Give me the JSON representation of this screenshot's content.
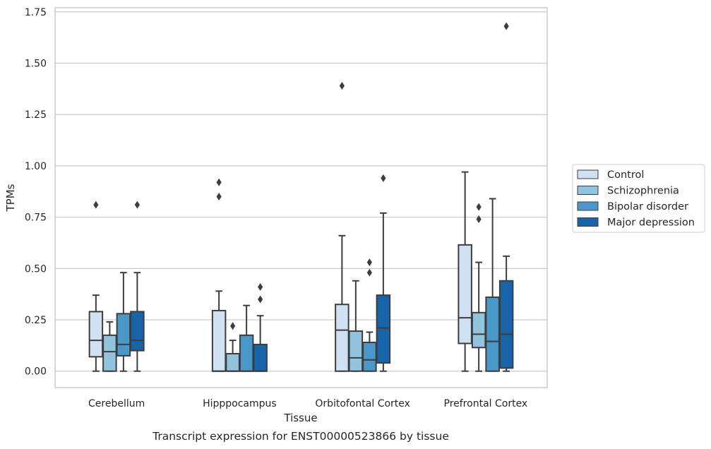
{
  "chart_data": {
    "type": "box",
    "caption": "Transcript expression for ENST00000523866 by tissue",
    "xlabel": "Tissue",
    "ylabel": "TPMs",
    "ylim": [
      -0.08,
      1.77
    ],
    "yticks": [
      "0.00",
      "0.25",
      "0.50",
      "0.75",
      "1.00",
      "1.25",
      "1.50",
      "1.75"
    ],
    "categories": [
      "Cerebellum",
      "Hipppocampus",
      "Orbitofontal Cortex",
      "Prefrontal Cortex"
    ],
    "grid": "horizontal",
    "legend_position": "right",
    "series": [
      {
        "name": "Control",
        "color": "#cfe1f2",
        "boxes": [
          {
            "whisker_low": 0.0,
            "q1": 0.07,
            "median": 0.15,
            "q3": 0.29,
            "whisker_high": 0.37,
            "outliers": [
              0.81
            ]
          },
          {
            "whisker_low": 0.0,
            "q1": 0.0,
            "median": 0.0,
            "q3": 0.295,
            "whisker_high": 0.39,
            "outliers": [
              0.85,
              0.92
            ]
          },
          {
            "whisker_low": 0.0,
            "q1": 0.0,
            "median": 0.2,
            "q3": 0.325,
            "whisker_high": 0.66,
            "outliers": [
              1.39
            ]
          },
          {
            "whisker_low": 0.0,
            "q1": 0.135,
            "median": 0.26,
            "q3": 0.615,
            "whisker_high": 0.97,
            "outliers": []
          }
        ]
      },
      {
        "name": "Schizophrenia",
        "color": "#93c4de",
        "boxes": [
          {
            "whisker_low": 0.0,
            "q1": 0.0,
            "median": 0.095,
            "q3": 0.175,
            "whisker_high": 0.24,
            "outliers": []
          },
          {
            "whisker_low": 0.0,
            "q1": 0.0,
            "median": 0.0,
            "q3": 0.085,
            "whisker_high": 0.15,
            "outliers": [
              0.22
            ]
          },
          {
            "whisker_low": 0.0,
            "q1": 0.0,
            "median": 0.065,
            "q3": 0.195,
            "whisker_high": 0.44,
            "outliers": []
          },
          {
            "whisker_low": 0.0,
            "q1": 0.115,
            "median": 0.18,
            "q3": 0.285,
            "whisker_high": 0.53,
            "outliers": [
              0.74,
              0.8
            ]
          }
        ]
      },
      {
        "name": "Bipolar disorder",
        "color": "#4a98c9",
        "boxes": [
          {
            "whisker_low": 0.0,
            "q1": 0.075,
            "median": 0.13,
            "q3": 0.28,
            "whisker_high": 0.48,
            "outliers": []
          },
          {
            "whisker_low": 0.0,
            "q1": 0.0,
            "median": 0.0,
            "q3": 0.175,
            "whisker_high": 0.32,
            "outliers": []
          },
          {
            "whisker_low": 0.0,
            "q1": 0.0,
            "median": 0.055,
            "q3": 0.14,
            "whisker_high": 0.19,
            "outliers": [
              0.48,
              0.53
            ]
          },
          {
            "whisker_low": 0.0,
            "q1": 0.0,
            "median": 0.145,
            "q3": 0.36,
            "whisker_high": 0.84,
            "outliers": []
          }
        ]
      },
      {
        "name": "Major depression",
        "color": "#1764ab",
        "boxes": [
          {
            "whisker_low": 0.0,
            "q1": 0.1,
            "median": 0.15,
            "q3": 0.29,
            "whisker_high": 0.48,
            "outliers": [
              0.81
            ]
          },
          {
            "whisker_low": 0.0,
            "q1": 0.0,
            "median": 0.0,
            "q3": 0.13,
            "whisker_high": 0.27,
            "outliers": [
              0.35,
              0.41
            ]
          },
          {
            "whisker_low": 0.0,
            "q1": 0.04,
            "median": 0.21,
            "q3": 0.37,
            "whisker_high": 0.77,
            "outliers": [
              0.94
            ]
          },
          {
            "whisker_low": 0.0,
            "q1": 0.015,
            "median": 0.18,
            "q3": 0.44,
            "whisker_high": 0.56,
            "outliers": [
              1.68
            ]
          }
        ]
      }
    ]
  }
}
